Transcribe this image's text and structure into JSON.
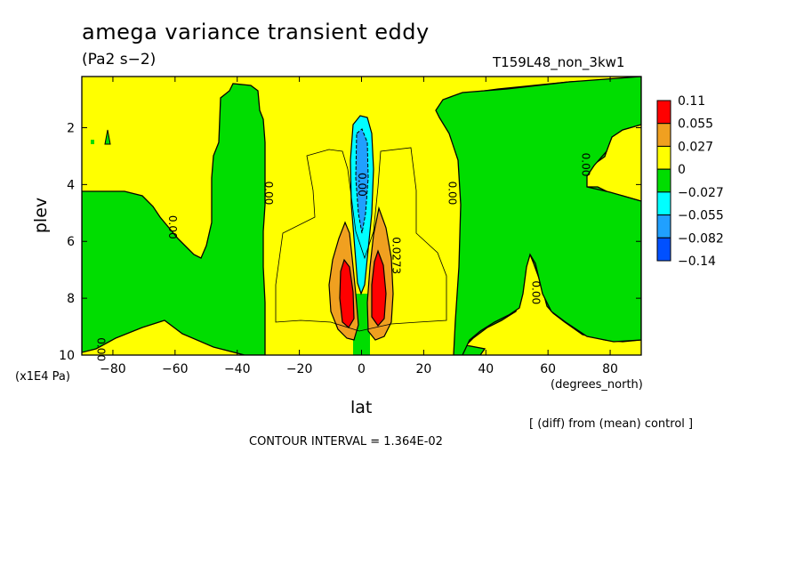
{
  "chart_data": {
    "type": "contour",
    "title": "amega variance transient eddy",
    "units": "(Pa2 s−2)",
    "run_label": "T159L48_non_3kw1",
    "xlabel": "lat",
    "xlabel_units": "(degrees_north)",
    "ylabel": "plev",
    "ylabel_scale": "(x1E4 Pa)",
    "xlim": [
      -90,
      90
    ],
    "ylim": [
      10,
      0.2
    ],
    "x_ticks": [
      -80,
      -60,
      -40,
      -20,
      0,
      20,
      40,
      60,
      80
    ],
    "y_ticks": [
      2,
      4,
      6,
      8,
      10
    ],
    "colorbar": {
      "levels": [
        "0.11",
        "0.055",
        "0.027",
        "0",
        "−0.027",
        "−0.055",
        "−0.082",
        "−0.14"
      ],
      "colors": [
        "#ff0000",
        "#f0a020",
        "#ffff00",
        "#00dd00",
        "#00ffff",
        "#20a0ff",
        "#0050ff"
      ]
    },
    "contour_labels": [
      {
        "text": "0.00",
        "lat": -31,
        "plev": 4.3
      },
      {
        "text": "0.00",
        "lat": -62,
        "plev": 5.5
      },
      {
        "text": "0.00",
        "lat": -1,
        "plev": 4.0
      },
      {
        "text": "0.00",
        "lat": 28,
        "plev": 4.3
      },
      {
        "text": "0.00",
        "lat": 71,
        "plev": 3.3
      },
      {
        "text": "0.00",
        "lat": 55,
        "plev": 7.8
      },
      {
        "text": "0.0273",
        "lat": 10,
        "plev": 6.5
      },
      {
        "text": "0.00",
        "lat": -85,
        "plev": 9.8
      }
    ],
    "diff_note": "[ (diff) from (mean) control ]",
    "contour_interval": "CONTOUR INTERVAL = 1.364E-02"
  },
  "colors": {
    "red": "#ff0000",
    "orange": "#f0a020",
    "yellow": "#ffff00",
    "green": "#00dd00",
    "cyan": "#00ffff",
    "lightblue": "#20a0ff",
    "blue": "#0050ff"
  }
}
